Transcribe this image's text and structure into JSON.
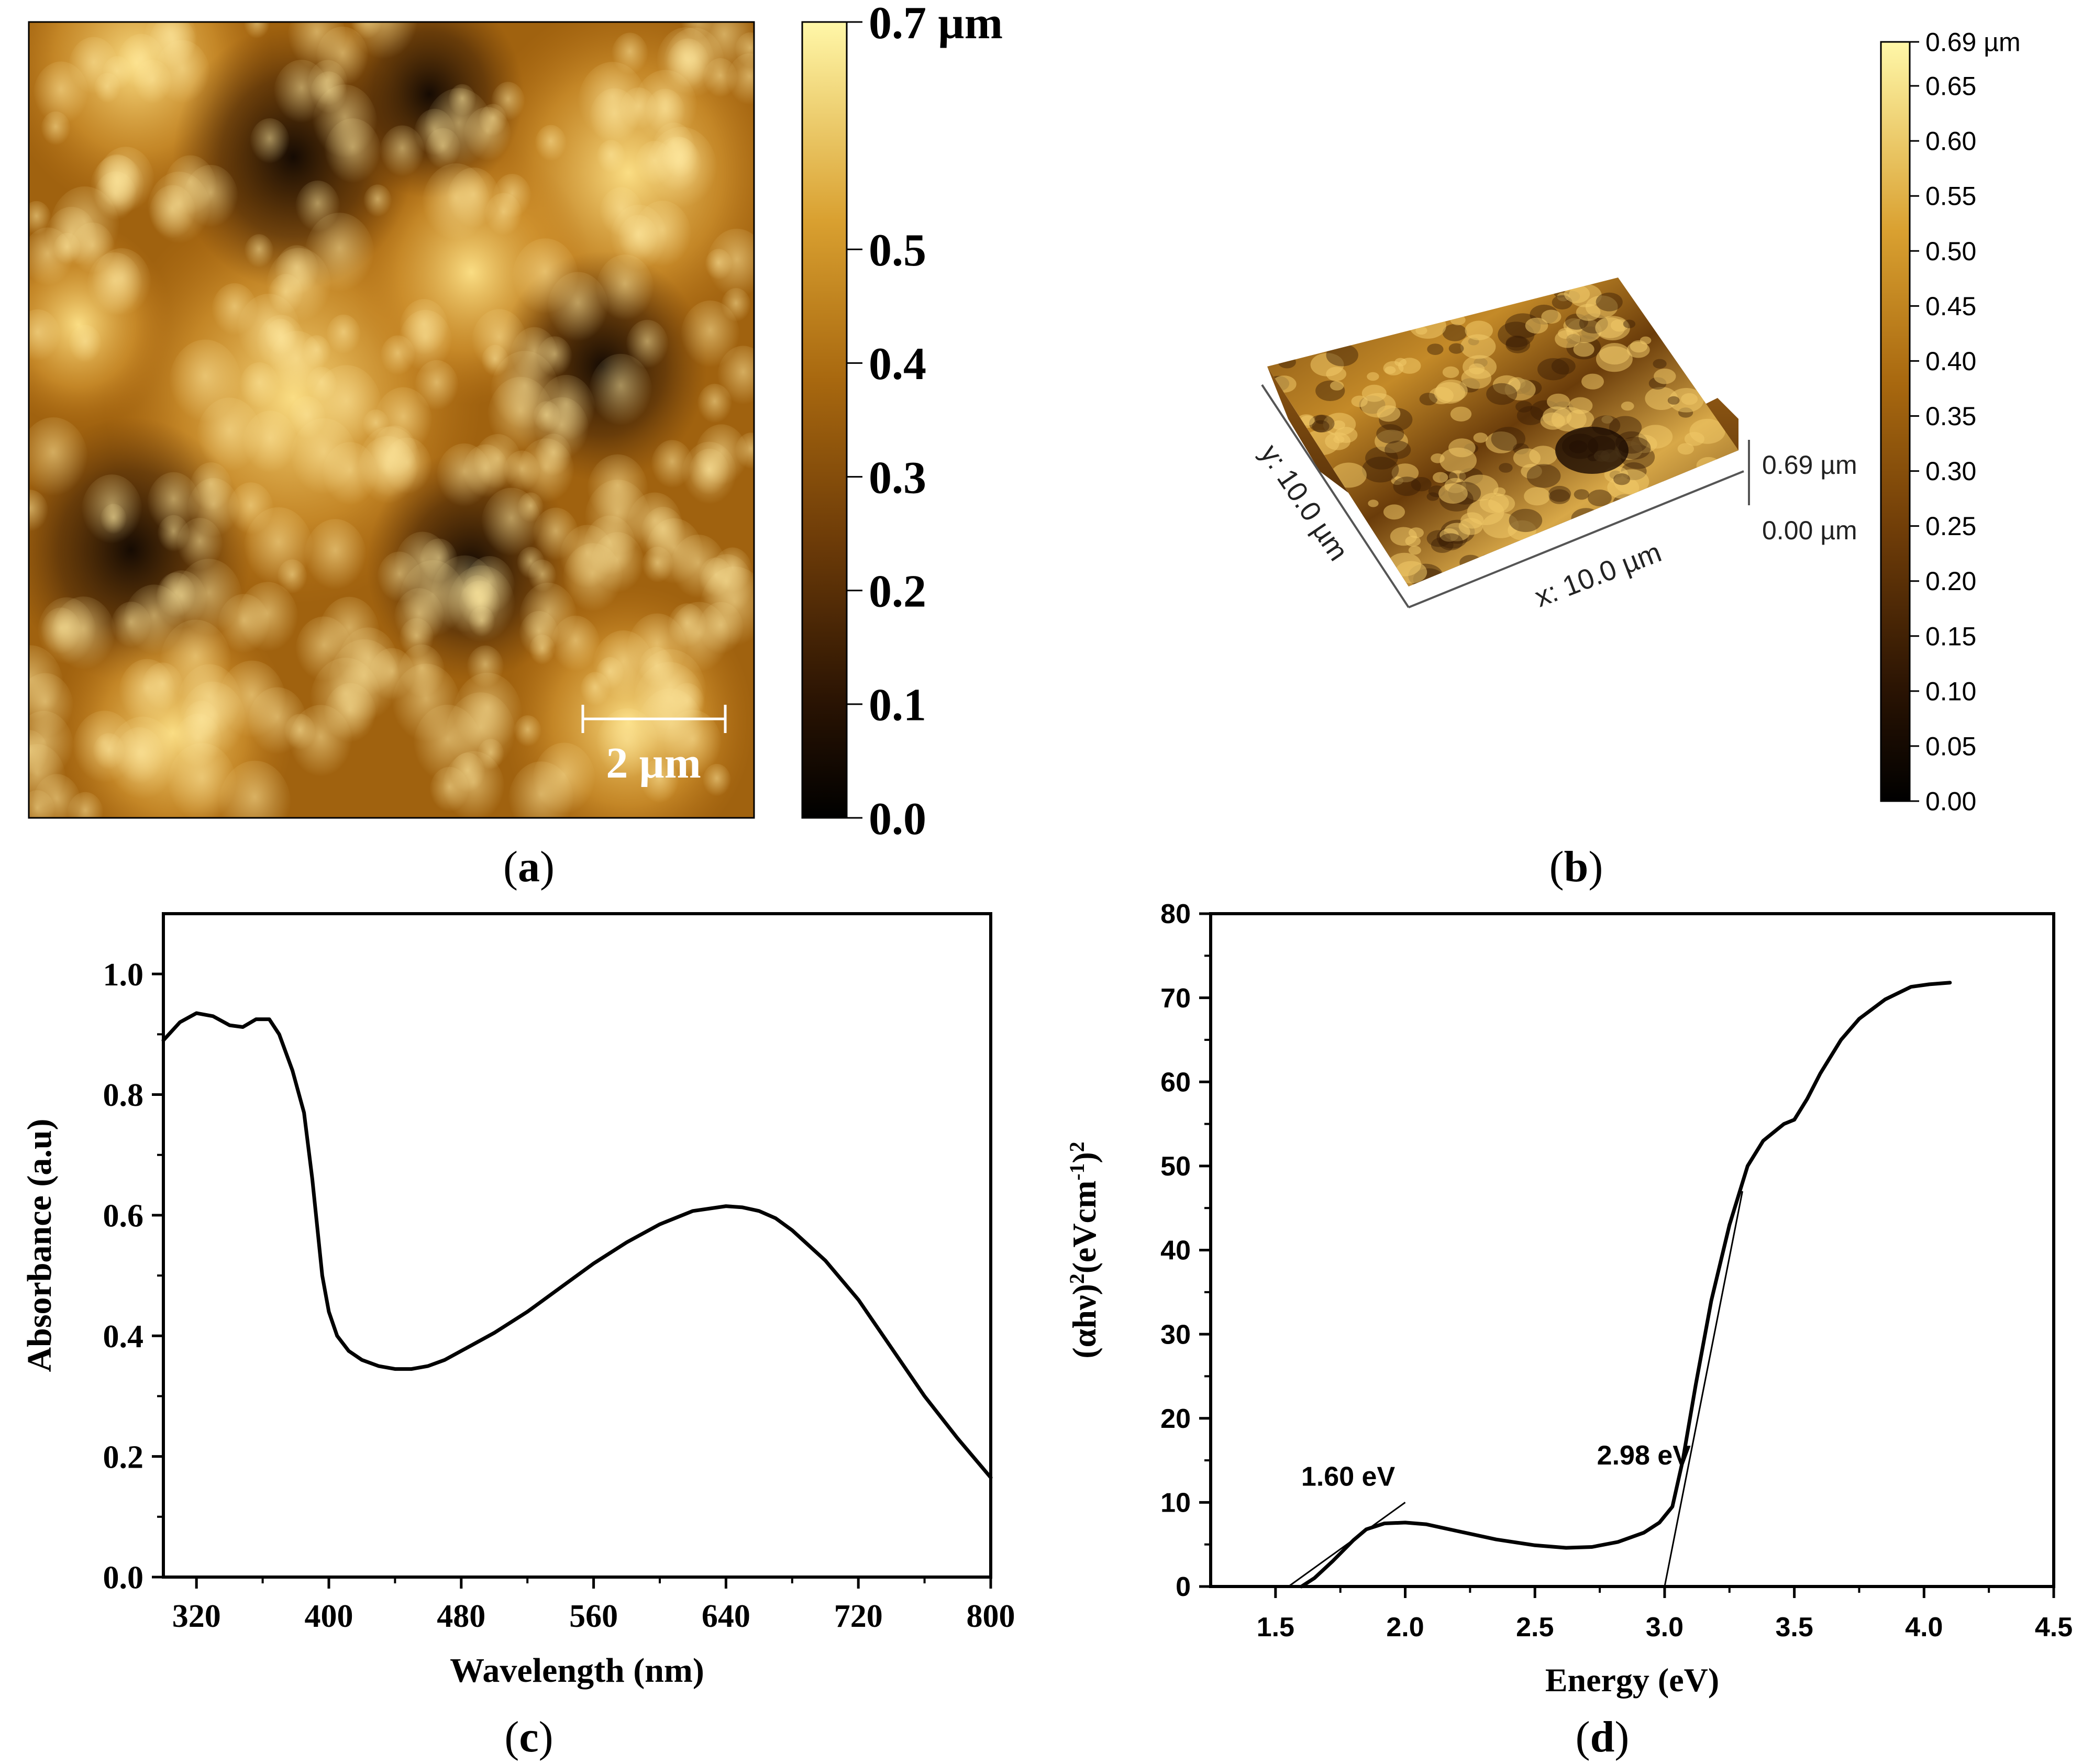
{
  "panels": {
    "a": {
      "label_open": "(",
      "label_letter": "a",
      "label_close": ")"
    },
    "b": {
      "label_open": "(",
      "label_letter": "b",
      "label_close": ")"
    },
    "c": {
      "label_open": "(",
      "label_letter": "c",
      "label_close": ")"
    },
    "d": {
      "label_open": "(",
      "label_letter": "d",
      "label_close": ")"
    }
  },
  "afm_2d": {
    "scale_bar_label": "2 µm",
    "colorbar": {
      "max": 0.7,
      "tick_labels": [
        "0.7 µm",
        "0.5",
        "0.4",
        "0.3",
        "0.2",
        "0.1",
        "0.0"
      ],
      "tick_values": [
        0.7,
        0.5,
        0.4,
        0.3,
        0.2,
        0.1,
        0.0
      ]
    },
    "colors": {
      "dark": "#0a0502",
      "mid": "#a0620f",
      "light": "#fff3a0"
    }
  },
  "afm_3d": {
    "x_axis_label": "x: 10.0 µm",
    "y_axis_label": "y: 10.0 µm",
    "z_max_label": "0.69 µm",
    "z_min_label": "0.00 µm",
    "colorbar": {
      "max": 0.69,
      "tick_labels": [
        "0.69 µm",
        "0.65",
        "0.60",
        "0.55",
        "0.50",
        "0.45",
        "0.40",
        "0.35",
        "0.30",
        "0.25",
        "0.20",
        "0.15",
        "0.10",
        "0.05",
        "0.00"
      ],
      "tick_values": [
        0.69,
        0.65,
        0.6,
        0.55,
        0.5,
        0.45,
        0.4,
        0.35,
        0.3,
        0.25,
        0.2,
        0.15,
        0.1,
        0.05,
        0.0
      ]
    }
  },
  "chart_data": [
    {
      "type": "line",
      "panel": "c",
      "title": "",
      "xlabel": "Wavelength (nm)",
      "ylabel": "Absorbance (a.u)",
      "xlim": [
        300,
        800
      ],
      "ylim": [
        0.0,
        1.1
      ],
      "xticks": [
        320,
        400,
        480,
        560,
        640,
        720,
        800
      ],
      "xtick_labels": [
        "320",
        "400",
        "480",
        "560",
        "640",
        "720",
        "800"
      ],
      "yticks": [
        0.0,
        0.2,
        0.4,
        0.6,
        0.8,
        1.0
      ],
      "ytick_labels": [
        "0.0",
        "0.2",
        "0.4",
        "0.6",
        "0.8",
        "1.0"
      ],
      "series": [
        {
          "name": "Absorbance",
          "x": [
            300,
            310,
            320,
            330,
            340,
            348,
            356,
            364,
            370,
            378,
            385,
            390,
            393,
            396,
            400,
            405,
            412,
            420,
            430,
            440,
            450,
            460,
            470,
            480,
            500,
            520,
            540,
            560,
            580,
            600,
            620,
            640,
            650,
            660,
            670,
            680,
            700,
            720,
            740,
            760,
            780,
            800
          ],
          "y": [
            0.89,
            0.92,
            0.935,
            0.93,
            0.915,
            0.912,
            0.925,
            0.925,
            0.9,
            0.84,
            0.77,
            0.66,
            0.58,
            0.5,
            0.44,
            0.4,
            0.375,
            0.36,
            0.35,
            0.345,
            0.345,
            0.35,
            0.36,
            0.375,
            0.405,
            0.44,
            0.48,
            0.52,
            0.555,
            0.585,
            0.607,
            0.615,
            0.613,
            0.607,
            0.595,
            0.575,
            0.525,
            0.46,
            0.38,
            0.3,
            0.23,
            0.165
          ]
        }
      ]
    },
    {
      "type": "line",
      "panel": "d",
      "title": "",
      "xlabel": "Energy (eV)",
      "ylabel": "(αhν)²(eVcm⁻¹)²",
      "ylabel_parts": [
        "(αhν)",
        "2",
        "(eVcm",
        "-1",
        ")",
        "2"
      ],
      "xlim": [
        1.25,
        4.5
      ],
      "ylim": [
        0,
        80
      ],
      "xticks": [
        1.5,
        2.0,
        2.5,
        3.0,
        3.5,
        4.0,
        4.5
      ],
      "xtick_labels": [
        "1.5",
        "2.0",
        "2.5",
        "3.0",
        "3.5",
        "4.0",
        "4.5"
      ],
      "yticks": [
        0,
        10,
        20,
        30,
        40,
        50,
        60,
        70,
        80
      ],
      "ytick_labels": [
        "0",
        "10",
        "20",
        "30",
        "40",
        "50",
        "60",
        "70",
        "80"
      ],
      "series": [
        {
          "name": "(αhν)²",
          "x": [
            1.6,
            1.65,
            1.72,
            1.8,
            1.85,
            1.92,
            2.0,
            2.08,
            2.2,
            2.35,
            2.5,
            2.62,
            2.72,
            2.82,
            2.92,
            2.98,
            3.03,
            3.07,
            3.12,
            3.18,
            3.25,
            3.32,
            3.38,
            3.42,
            3.46,
            3.5,
            3.55,
            3.6,
            3.68,
            3.75,
            3.85,
            3.95,
            4.02,
            4.1
          ],
          "y": [
            0,
            1.0,
            3.0,
            5.5,
            6.8,
            7.5,
            7.6,
            7.4,
            6.6,
            5.6,
            4.9,
            4.6,
            4.7,
            5.3,
            6.4,
            7.6,
            9.5,
            15,
            24,
            34,
            43,
            50,
            53,
            54,
            55,
            55.5,
            58,
            61,
            65,
            67.5,
            69.8,
            71.3,
            71.6,
            71.8
          ]
        }
      ],
      "tangents": [
        {
          "from": [
            1.55,
            0
          ],
          "to": [
            2.0,
            10
          ]
        },
        {
          "from": [
            3.0,
            0
          ],
          "to": [
            3.3,
            47
          ]
        }
      ],
      "annotations": [
        {
          "text": "1.60 eV",
          "x": 1.78,
          "y": 12
        },
        {
          "text": "2.98 eV",
          "x": 2.92,
          "y": 14.5
        }
      ]
    }
  ]
}
